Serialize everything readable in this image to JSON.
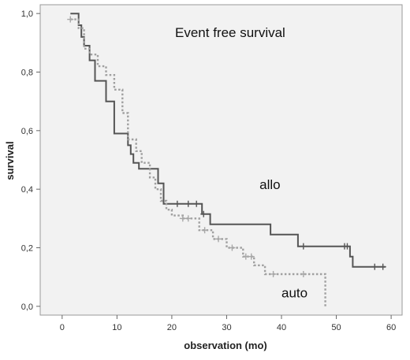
{
  "chart_data": {
    "type": "line",
    "title": "Event free survival",
    "xlabel": "observation (mo)",
    "ylabel": "survival",
    "xlim": [
      -4,
      62
    ],
    "ylim": [
      -0.03,
      1.03
    ],
    "x_ticks": [
      "0",
      "10",
      "20",
      "30",
      "40",
      "50",
      "60"
    ],
    "x_tick_values": [
      0,
      10,
      20,
      30,
      40,
      50,
      60
    ],
    "y_ticks": [
      "0,0",
      "0,2",
      "0,4",
      "0,6",
      "0,8",
      "1,0"
    ],
    "y_tick_values": [
      0,
      0.2,
      0.4,
      0.6,
      0.8,
      1.0
    ],
    "grid": false,
    "background_color": "#f2f2f2",
    "annotations": [
      {
        "text": "allo",
        "x": 36,
        "y": 0.4
      },
      {
        "text": "auto",
        "x": 40,
        "y": 0.03
      }
    ],
    "series": [
      {
        "name": "allo",
        "color": "#555555",
        "dash": "solid",
        "step_points": [
          [
            1.5,
            1.0
          ],
          [
            3.0,
            0.96
          ],
          [
            3.5,
            0.92
          ],
          [
            4.0,
            0.89
          ],
          [
            5.0,
            0.84
          ],
          [
            6.0,
            0.77
          ],
          [
            8.0,
            0.7
          ],
          [
            9.5,
            0.59
          ],
          [
            12.0,
            0.55
          ],
          [
            12.5,
            0.52
          ],
          [
            13.0,
            0.49
          ],
          [
            14.0,
            0.47
          ],
          [
            17.0,
            0.47
          ],
          [
            17.5,
            0.42
          ],
          [
            18.5,
            0.35
          ],
          [
            25.5,
            0.315
          ],
          [
            27.0,
            0.28
          ],
          [
            38.0,
            0.245
          ],
          [
            42.0,
            0.245
          ],
          [
            43.0,
            0.205
          ],
          [
            52.5,
            0.17
          ],
          [
            53.0,
            0.135
          ],
          [
            59.0,
            0.135
          ]
        ],
        "censor_x": [
          21.0,
          23.0,
          24.5,
          25.8,
          44.0,
          51.5,
          52.0,
          57.0,
          58.5
        ]
      },
      {
        "name": "auto",
        "color": "#a0a0a0",
        "dash": "dotted",
        "step_points": [
          [
            1.5,
            0.98
          ],
          [
            3.0,
            0.95
          ],
          [
            4.0,
            0.88
          ],
          [
            5.0,
            0.86
          ],
          [
            6.5,
            0.82
          ],
          [
            8.0,
            0.79
          ],
          [
            9.5,
            0.74
          ],
          [
            11.0,
            0.66
          ],
          [
            12.0,
            0.57
          ],
          [
            13.5,
            0.53
          ],
          [
            14.5,
            0.49
          ],
          [
            16.0,
            0.44
          ],
          [
            17.0,
            0.4
          ],
          [
            18.0,
            0.36
          ],
          [
            19.0,
            0.33
          ],
          [
            20.0,
            0.31
          ],
          [
            22.0,
            0.3
          ],
          [
            25.0,
            0.26
          ],
          [
            27.5,
            0.23
          ],
          [
            30.0,
            0.2
          ],
          [
            33.0,
            0.17
          ],
          [
            35.0,
            0.14
          ],
          [
            37.0,
            0.11
          ],
          [
            48.0,
            0.11
          ],
          [
            48.0,
            0.0
          ]
        ],
        "censor_x": [
          1.5,
          22.0,
          23.0,
          26.0,
          28.5,
          31.0,
          33.5,
          34.5,
          38.5,
          44.0
        ]
      }
    ]
  }
}
